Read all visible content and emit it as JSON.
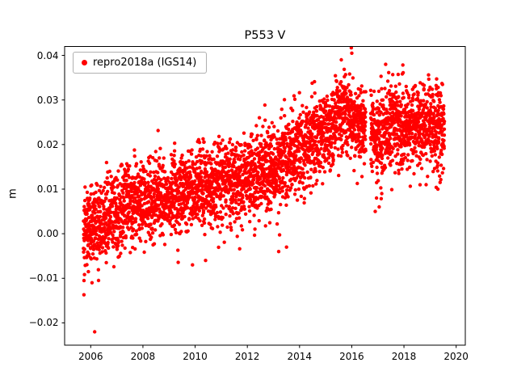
{
  "figure": {
    "background": "#ffffff"
  },
  "chart_data": {
    "type": "scatter",
    "title": "P553 V",
    "xlabel": "",
    "ylabel": "m",
    "xlim": [
      2005.0,
      2020.35
    ],
    "ylim": [
      -0.025,
      0.042
    ],
    "xticks": [
      2006,
      2008,
      2010,
      2012,
      2014,
      2016,
      2018,
      2020
    ],
    "yticks": [
      -0.02,
      -0.01,
      0.0,
      0.01,
      0.02,
      0.03,
      0.04
    ],
    "grid": false,
    "legend_position": "upper left",
    "marker_color": "#ff0000",
    "series": [
      {
        "name": "repro2018a (IGS14)",
        "color": "#ff0000",
        "marker": "circle",
        "marker_radius_px": 2.2,
        "x_start": 2005.72,
        "x_end": 2019.55,
        "n_points": 4000,
        "seed": 42,
        "noise_std": 0.0045,
        "neg_tail_prob": 0.035,
        "neg_tail_mag": 0.009,
        "gaps": [
          [
            2016.54,
            2016.72
          ]
        ],
        "trend_anchors": [
          [
            2005.72,
            0.001
          ],
          [
            2006.5,
            0.003
          ],
          [
            2007.0,
            0.005
          ],
          [
            2008.0,
            0.007
          ],
          [
            2009.0,
            0.008
          ],
          [
            2010.0,
            0.01
          ],
          [
            2011.0,
            0.011
          ],
          [
            2012.0,
            0.013
          ],
          [
            2013.0,
            0.015
          ],
          [
            2014.0,
            0.019
          ],
          [
            2015.0,
            0.023
          ],
          [
            2015.8,
            0.027
          ],
          [
            2016.4,
            0.025
          ],
          [
            2017.0,
            0.021
          ],
          [
            2017.5,
            0.024
          ],
          [
            2018.0,
            0.024
          ],
          [
            2019.0,
            0.025
          ],
          [
            2019.55,
            0.023
          ]
        ],
        "outliers": [
          [
            2006.15,
            -0.022
          ],
          [
            2006.05,
            -0.011
          ],
          [
            2006.3,
            -0.0105
          ],
          [
            2009.9,
            -0.007
          ],
          [
            2010.4,
            -0.006
          ],
          [
            2013.2,
            -0.004
          ],
          [
            2013.5,
            -0.003
          ],
          [
            2015.6,
            0.039
          ],
          [
            2016.9,
            0.005
          ],
          [
            2016.95,
            0.008
          ],
          [
            2017.05,
            0.006
          ],
          [
            2017.15,
            0.009
          ],
          [
            2017.3,
            0.038
          ],
          [
            2018.85,
            0.011
          ],
          [
            2019.3,
            0.01
          ]
        ]
      }
    ]
  }
}
